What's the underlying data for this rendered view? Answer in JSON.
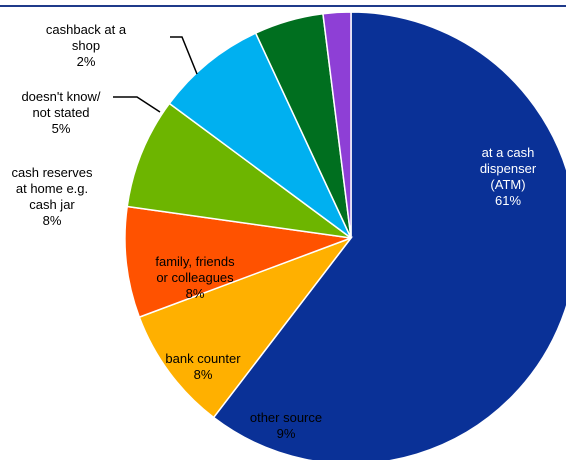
{
  "chart_data": {
    "type": "pie",
    "title": "",
    "slices": [
      {
        "label": [
          "at a cash",
          "dispenser",
          "(ATM)"
        ],
        "value": 61,
        "value_label": "61%",
        "color": "#0a3197",
        "label_color": "#ffffff",
        "label_position": "inside"
      },
      {
        "label": [
          "other source"
        ],
        "value": 9,
        "value_label": "9%",
        "color": "#ffb000",
        "label_color": "#000000",
        "label_position": "inside"
      },
      {
        "label": [
          "bank counter"
        ],
        "value": 8,
        "value_label": "8%",
        "color": "#ff5200",
        "label_color": "#000000",
        "label_position": "inside"
      },
      {
        "label": [
          "family, friends",
          "or colleagues"
        ],
        "value": 8,
        "value_label": "8%",
        "color": "#6db500",
        "label_color": "#000000",
        "label_position": "inside"
      },
      {
        "label": [
          "cash reserves",
          "at home e.g.",
          "cash jar"
        ],
        "value": 8,
        "value_label": "8%",
        "color": "#00b0f0",
        "label_color": "#000000",
        "label_position": "outside"
      },
      {
        "label": [
          "doesn't know/",
          "not stated"
        ],
        "value": 5,
        "value_label": "5%",
        "color": "#006f1f",
        "label_color": "#000000",
        "label_position": "outside-leader"
      },
      {
        "label": [
          "cashback at a",
          "shop"
        ],
        "value": 2,
        "value_label": "2%",
        "color": "#8e3fd6",
        "label_color": "#000000",
        "label_position": "outside-leader"
      }
    ],
    "start": "top",
    "direction": "clockwise",
    "legend": "none"
  }
}
